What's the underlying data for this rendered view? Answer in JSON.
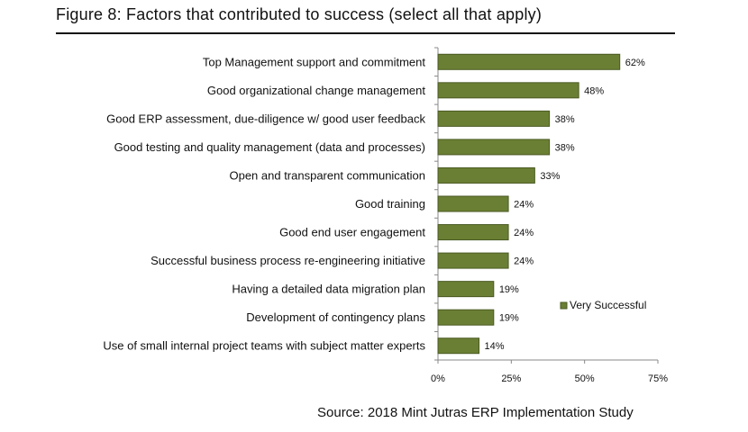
{
  "figure": {
    "title": "Figure 8: Factors that contributed to success (select all that apply)",
    "source": "Source: 2018 Mint Jutras ERP Implementation Study"
  },
  "colors": {
    "bar_fill": "#6b7f34",
    "bar_stroke": "#4a5a22",
    "axis": "#888888"
  },
  "chart_data": {
    "type": "bar",
    "orientation": "horizontal",
    "categories": [
      "Top Management support and commitment",
      "Good organizational change management",
      "Good ERP assessment, due-diligence w/ good user feedback",
      "Good testing and quality management (data and processes)",
      "Open and transparent communication",
      "Good training",
      "Good end user engagement",
      "Successful business process re-engineering initiative",
      "Having a detailed data migration plan",
      "Development of contingency plans",
      "Use of small internal project teams with subject matter experts"
    ],
    "series": [
      {
        "name": "Very Successful",
        "values": [
          62,
          48,
          38,
          38,
          33,
          24,
          24,
          24,
          19,
          19,
          14
        ],
        "value_labels": [
          "62%",
          "48%",
          "38%",
          "38%",
          "33%",
          "24%",
          "24%",
          "24%",
          "19%",
          "19%",
          "14%"
        ]
      }
    ],
    "xlim": [
      0,
      75
    ],
    "xticks": [
      0,
      25,
      50,
      75
    ],
    "xtick_labels": [
      "0%",
      "25%",
      "50%",
      "75%"
    ],
    "xlabel": "",
    "ylabel": "",
    "grid": false,
    "legend_position": "right"
  }
}
